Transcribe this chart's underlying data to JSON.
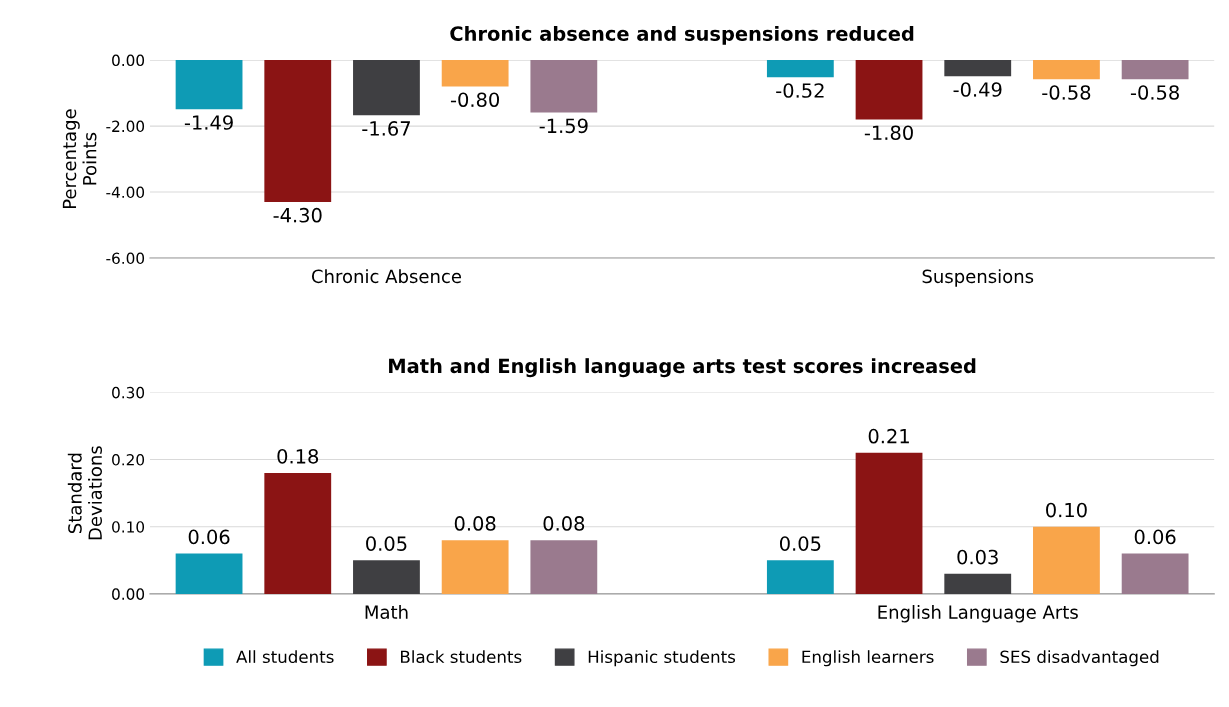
{
  "chart_data": [
    {
      "type": "bar",
      "title": "Chronic absence and suspensions reduced",
      "ylabel": "Percentage\nPoints",
      "categories": [
        "Chronic Absence",
        "Suspensions"
      ],
      "ylim": [
        -6,
        0
      ],
      "yticks": [
        {
          "value": 0,
          "label": "0.00"
        },
        {
          "value": -2,
          "label": "-2.00"
        },
        {
          "value": -4,
          "label": "-4.00"
        },
        {
          "value": -6,
          "label": "-6.00"
        }
      ],
      "grid": "y",
      "series": [
        {
          "color": "#0e9bb5",
          "values": [
            -1.49,
            -0.52
          ],
          "value_labels": [
            "-1.49",
            "-0.52"
          ]
        },
        {
          "color": "#8b1414",
          "values": [
            -4.3,
            -1.8
          ],
          "value_labels": [
            "-4.30",
            "-1.80"
          ]
        },
        {
          "color": "#3f3f42",
          "values": [
            -1.67,
            -0.49
          ],
          "value_labels": [
            "-1.67",
            "-0.49"
          ]
        },
        {
          "color": "#f9a54a",
          "values": [
            -0.8,
            -0.58
          ],
          "value_labels": [
            "-0.80",
            "-0.58"
          ]
        },
        {
          "color": "#9a7a8e",
          "values": [
            -1.59,
            -0.58
          ],
          "value_labels": [
            "-1.59",
            "-0.58"
          ]
        }
      ]
    },
    {
      "type": "bar",
      "title": "Math and English language arts test scores increased",
      "ylabel": "Standard\nDeviations",
      "categories": [
        "Math",
        "English Language Arts"
      ],
      "ylim": [
        0,
        0.3
      ],
      "yticks": [
        {
          "value": 0,
          "label": "0.00"
        },
        {
          "value": 0.1,
          "label": "0.10"
        },
        {
          "value": 0.2,
          "label": "0.20"
        },
        {
          "value": 0.3,
          "label": "0.30"
        }
      ],
      "grid": "y",
      "legend": "bottom",
      "series": [
        {
          "name": "All students",
          "color": "#0e9bb5",
          "values": [
            0.06,
            0.05
          ],
          "value_labels": [
            "0.06",
            "0.05"
          ]
        },
        {
          "name": "Black students",
          "color": "#8b1414",
          "values": [
            0.18,
            0.21
          ],
          "value_labels": [
            "0.18",
            "0.21"
          ]
        },
        {
          "name": "Hispanic students",
          "color": "#3f3f42",
          "values": [
            0.05,
            0.03
          ],
          "value_labels": [
            "0.05",
            "0.03"
          ]
        },
        {
          "name": "English learners",
          "color": "#f9a54a",
          "values": [
            0.08,
            0.1
          ],
          "value_labels": [
            "0.08",
            "0.10"
          ]
        },
        {
          "name": "SES disadvantaged",
          "color": "#9a7a8e",
          "values": [
            0.08,
            0.06
          ],
          "value_labels": [
            "0.08",
            "0.06"
          ]
        }
      ]
    }
  ]
}
